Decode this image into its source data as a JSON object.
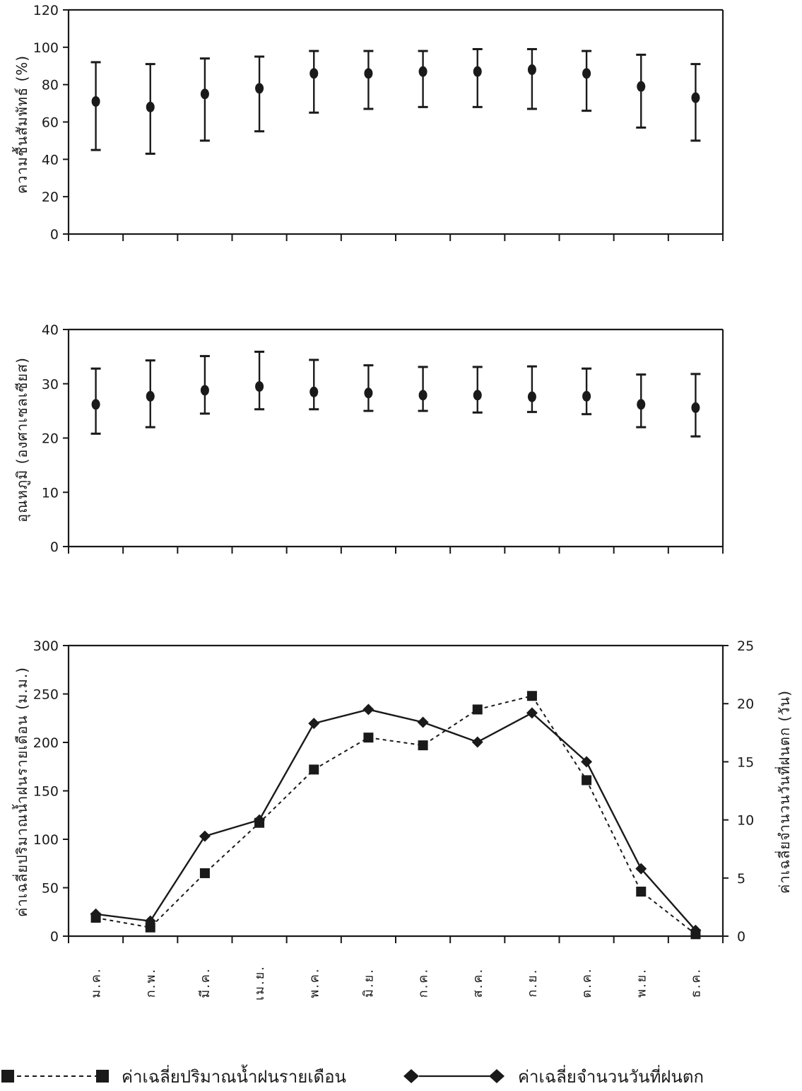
{
  "chart_data": [
    {
      "id": "humidity",
      "type": "scatter",
      "error_bars": true,
      "ylabel": "ความชื้นสัมพัทธ์ (%)",
      "ylim": [
        0,
        120
      ],
      "yticks": [
        0,
        20,
        40,
        60,
        80,
        100,
        120
      ],
      "x": [
        1,
        2,
        3,
        4,
        5,
        6,
        7,
        8,
        9,
        10,
        11,
        12
      ],
      "series": [
        {
          "mean": [
            71,
            68,
            75,
            78,
            86,
            86,
            87,
            87,
            88,
            86,
            79,
            73
          ],
          "low": [
            45,
            43,
            50,
            55,
            65,
            67,
            68,
            68,
            67,
            66,
            57,
            50
          ],
          "high": [
            92,
            91,
            94,
            95,
            98,
            98,
            98,
            99,
            99,
            98,
            96,
            91
          ]
        }
      ]
    },
    {
      "id": "temperature",
      "type": "scatter",
      "error_bars": true,
      "ylabel": "อุณหภูมิ (องศาเซลเซียส)",
      "ylim": [
        0,
        40
      ],
      "yticks": [
        0,
        10,
        20,
        30,
        40
      ],
      "x": [
        1,
        2,
        3,
        4,
        5,
        6,
        7,
        8,
        9,
        10,
        11,
        12
      ],
      "series": [
        {
          "mean": [
            26.2,
            27.7,
            28.8,
            29.5,
            28.5,
            28.3,
            27.9,
            27.9,
            27.6,
            27.7,
            26.2,
            25.6
          ],
          "low": [
            20.8,
            22.0,
            24.5,
            25.3,
            25.3,
            25.0,
            25.0,
            24.7,
            24.8,
            24.4,
            22.0,
            20.3
          ],
          "high": [
            32.8,
            34.3,
            35.1,
            35.9,
            34.4,
            33.4,
            33.1,
            33.1,
            33.2,
            32.8,
            31.7,
            31.8
          ]
        }
      ]
    },
    {
      "id": "rain",
      "type": "line",
      "categories": [
        "ม.ค.",
        "ก.พ.",
        "มี.ค.",
        "เม.ย.",
        "พ.ค.",
        "มิ.ย.",
        "ก.ค.",
        "ส.ค.",
        "ก.ย.",
        "ต.ค.",
        "พ.ย.",
        "ธ.ค."
      ],
      "ylabel": "ค่าเฉลี่ยปริมาณน้ำฝนรายเดือน (ม.ม.)",
      "ylim": [
        0,
        300
      ],
      "yticks": [
        0,
        50,
        100,
        150,
        200,
        250,
        300
      ],
      "y2label": "ค่าเฉลี่ยจำนวนวันที่ฝนตก (วัน)",
      "y2lim": [
        0,
        25
      ],
      "y2ticks": [
        0,
        5,
        10,
        15,
        20,
        25
      ],
      "series": [
        {
          "name": "ค่าเฉลี่ยปริมาณน้ำฝนรายเดือน",
          "axis": "left",
          "marker": "square",
          "style": "dashed",
          "values": [
            19,
            9,
            65,
            117,
            172,
            205,
            197,
            234,
            248,
            161,
            46,
            2
          ]
        },
        {
          "name": "ค่าเฉลี่ยจำนวนวันที่ฝนตก",
          "axis": "right",
          "marker": "diamond",
          "style": "solid",
          "values": [
            1.9,
            1.3,
            8.6,
            10.0,
            18.3,
            19.5,
            18.4,
            16.7,
            19.2,
            15.0,
            5.8,
            0.5
          ]
        }
      ],
      "legend_position": "bottom"
    }
  ],
  "legend": {
    "rain_label": "ค่าเฉลี่ยปริมาณน้ำฝนรายเดือน",
    "days_label": "ค่าเฉลี่ยจำนวนวันที่ฝนตก"
  },
  "colors": {
    "ink": "#1a1a1a"
  }
}
